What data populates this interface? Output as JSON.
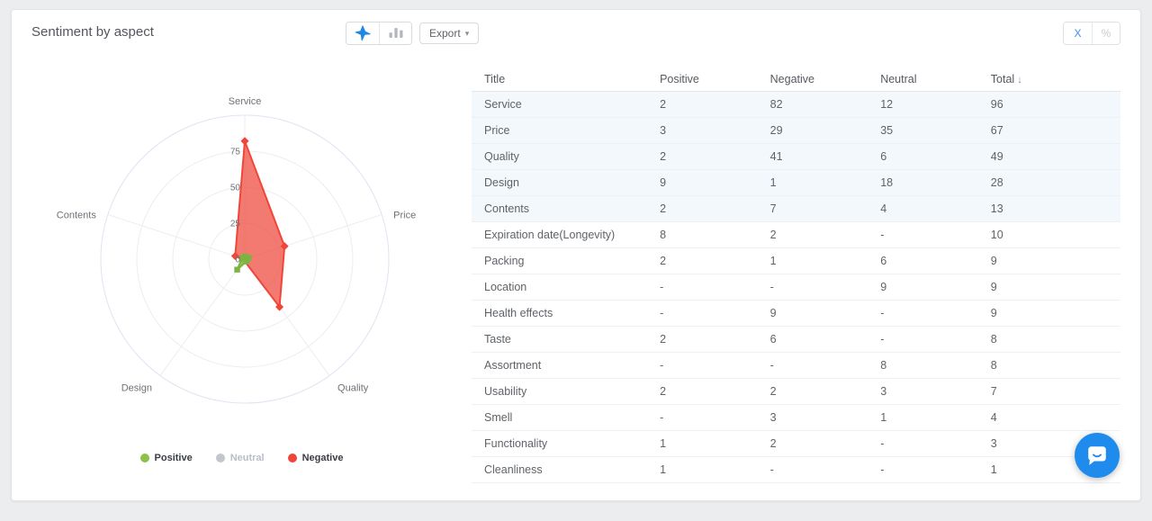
{
  "header": {
    "title": "Sentiment by aspect",
    "export_label": "Export",
    "export_caret": "▾",
    "view_toggle": {
      "active": "radar",
      "options": [
        "radar",
        "bar"
      ]
    },
    "unit_toggle": {
      "absolute": "X",
      "percent": "%",
      "active": "absolute"
    }
  },
  "colors": {
    "accent_blue": "#1e88e5",
    "positive": "#8bc34a",
    "negative": "#ef4639",
    "neutral": "#c3c6cc",
    "row_highlight": "#f3f8fd",
    "chat_bubble": "#1f8ced"
  },
  "chart_data": {
    "type": "radar",
    "categories": [
      "Service",
      "Price",
      "Quality",
      "Design",
      "Contents"
    ],
    "max": 100,
    "rings": [
      25,
      50,
      75,
      100
    ],
    "tick_labels": [
      0,
      25,
      50,
      75
    ],
    "grid": true,
    "legend_position": "bottom",
    "series": [
      {
        "name": "Positive",
        "values": [
          2,
          3,
          2,
          9,
          2
        ],
        "color": "#7cb342",
        "fill": "#8bc34a",
        "fill_opacity": 0.95,
        "marker": "square",
        "visible": true
      },
      {
        "name": "Neutral",
        "values": [
          12,
          35,
          6,
          18,
          4
        ],
        "color": "#b6b9bf",
        "fill": "#b6b9bf",
        "fill_opacity": 0.6,
        "marker": "circle",
        "visible": false
      },
      {
        "name": "Negative",
        "values": [
          82,
          29,
          41,
          1,
          7
        ],
        "color": "#ef4639",
        "fill": "#ef4639",
        "fill_opacity": 0.72,
        "marker": "diamond",
        "visible": true
      }
    ]
  },
  "table": {
    "columns": [
      {
        "label": "Title"
      },
      {
        "label": "Positive"
      },
      {
        "label": "Negative"
      },
      {
        "label": "Neutral"
      },
      {
        "label": "Total",
        "sort": "↓"
      }
    ],
    "rows": [
      {
        "title": "Service",
        "positive": "2",
        "negative": "82",
        "neutral": "12",
        "total": "96",
        "highlighted": true
      },
      {
        "title": "Price",
        "positive": "3",
        "negative": "29",
        "neutral": "35",
        "total": "67",
        "highlighted": true
      },
      {
        "title": "Quality",
        "positive": "2",
        "negative": "41",
        "neutral": "6",
        "total": "49",
        "highlighted": true
      },
      {
        "title": "Design",
        "positive": "9",
        "negative": "1",
        "neutral": "18",
        "total": "28",
        "highlighted": true
      },
      {
        "title": "Contents",
        "positive": "2",
        "negative": "7",
        "neutral": "4",
        "total": "13",
        "highlighted": true
      },
      {
        "title": "Expiration date(Longevity)",
        "positive": "8",
        "negative": "2",
        "neutral": "-",
        "total": "10",
        "highlighted": false
      },
      {
        "title": "Packing",
        "positive": "2",
        "negative": "1",
        "neutral": "6",
        "total": "9",
        "highlighted": false
      },
      {
        "title": "Location",
        "positive": "-",
        "negative": "-",
        "neutral": "9",
        "total": "9",
        "highlighted": false
      },
      {
        "title": "Health effects",
        "positive": "-",
        "negative": "9",
        "neutral": "-",
        "total": "9",
        "highlighted": false
      },
      {
        "title": "Taste",
        "positive": "2",
        "negative": "6",
        "neutral": "-",
        "total": "8",
        "highlighted": false
      },
      {
        "title": "Assortment",
        "positive": "-",
        "negative": "-",
        "neutral": "8",
        "total": "8",
        "highlighted": false
      },
      {
        "title": "Usability",
        "positive": "2",
        "negative": "2",
        "neutral": "3",
        "total": "7",
        "highlighted": false
      },
      {
        "title": "Smell",
        "positive": "-",
        "negative": "3",
        "neutral": "1",
        "total": "4",
        "highlighted": false
      },
      {
        "title": "Functionality",
        "positive": "1",
        "negative": "2",
        "neutral": "-",
        "total": "3",
        "highlighted": false
      },
      {
        "title": "Cleanliness",
        "positive": "1",
        "negative": "-",
        "neutral": "-",
        "total": "1",
        "highlighted": false
      }
    ]
  }
}
